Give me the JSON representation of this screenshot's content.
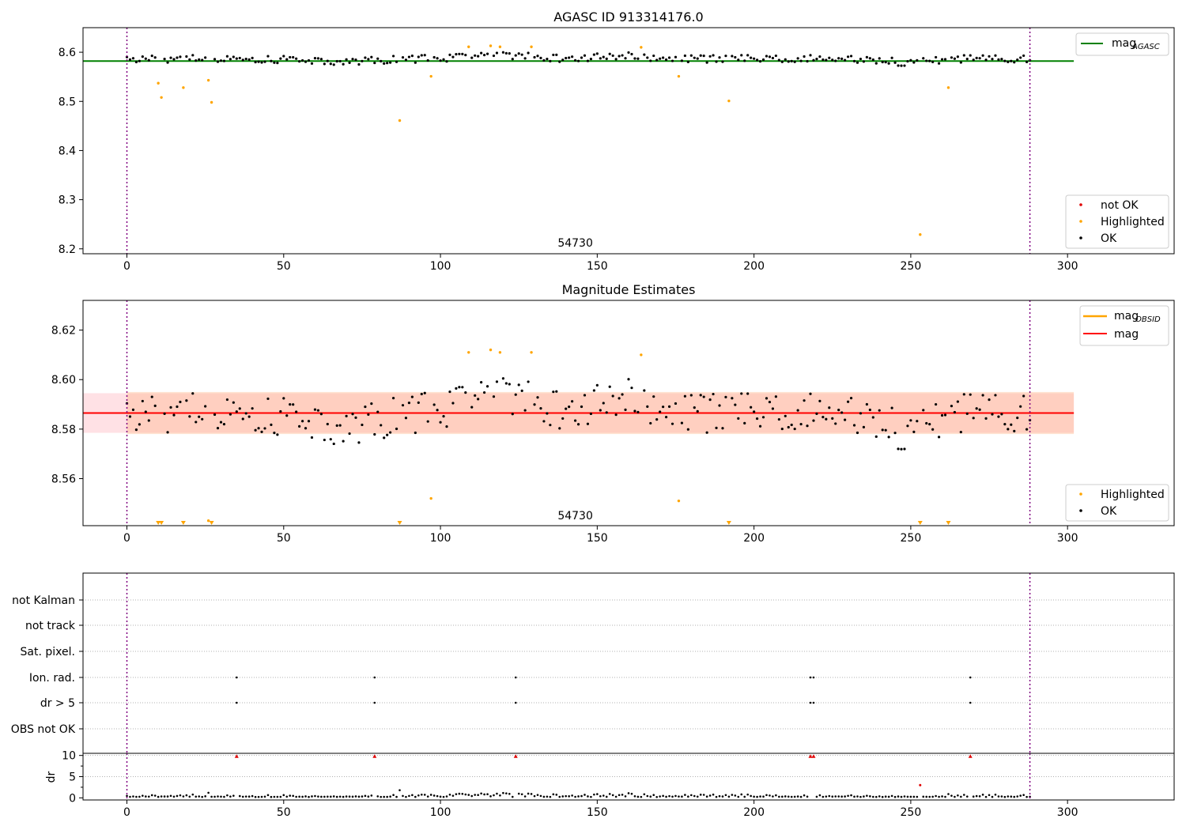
{
  "chart_data": [
    {
      "id": "agasc",
      "type": "scatter",
      "title": "AGASC ID 913314176.0",
      "annotation": "54730",
      "xlim": [
        -14,
        334
      ],
      "ylim": [
        8.19,
        8.65
      ],
      "xticks": [
        0,
        50,
        100,
        150,
        200,
        250,
        300
      ],
      "yticks": [
        8.2,
        8.3,
        8.4,
        8.5,
        8.6
      ],
      "ytick_format": 1,
      "vlines": [
        0,
        288
      ],
      "hline": {
        "value": 8.582,
        "x_range": [
          -14,
          302
        ],
        "color": "#008000"
      },
      "legend_top": [
        {
          "label": "mag",
          "subscript": "AGASC",
          "color": "#008000"
        }
      ],
      "legend_bottom": [
        {
          "label": "not OK",
          "color": "#e00000"
        },
        {
          "label": "Highlighted",
          "color": "#ffa500"
        },
        {
          "label": "OK",
          "color": "#000000"
        }
      ],
      "highlighted": [
        [
          10,
          8.537
        ],
        [
          11,
          8.508
        ],
        [
          18,
          8.528
        ],
        [
          26,
          8.543
        ],
        [
          27,
          8.498
        ],
        [
          87,
          8.461
        ],
        [
          97,
          8.551
        ],
        [
          109,
          8.611
        ],
        [
          116,
          8.613
        ],
        [
          119,
          8.611
        ],
        [
          129,
          8.611
        ],
        [
          164,
          8.61
        ],
        [
          176,
          8.551
        ],
        [
          192,
          8.501
        ],
        [
          253,
          8.229
        ],
        [
          262,
          8.528
        ]
      ]
    },
    {
      "id": "estimates",
      "type": "scatter",
      "title": "Magnitude Estimates",
      "annotation": "54730",
      "xlim": [
        -14,
        334
      ],
      "ylim": [
        8.541,
        8.632
      ],
      "xticks": [
        0,
        50,
        100,
        150,
        200,
        250,
        300
      ],
      "yticks": [
        8.56,
        8.58,
        8.6,
        8.62
      ],
      "ytick_format": 2,
      "vlines": [
        0,
        288
      ],
      "mag": 8.5865,
      "band_outer": [
        8.5785,
        8.5945
      ],
      "band_inner": [
        8.578,
        8.595
      ],
      "legend_top": [
        {
          "label": "mag",
          "subscript": "OBSID",
          "color": "#ffa500"
        },
        {
          "label": "mag",
          "subscript": "",
          "color": "#ff0000"
        }
      ],
      "legend_bottom": [
        {
          "label": "Highlighted",
          "color": "#ffa500"
        },
        {
          "label": "OK",
          "color": "#000000"
        }
      ],
      "highlighted": [
        [
          97,
          8.552
        ],
        [
          109,
          8.611
        ],
        [
          116,
          8.612
        ],
        [
          119,
          8.611
        ],
        [
          129,
          8.611
        ],
        [
          164,
          8.61
        ],
        [
          176,
          8.551
        ],
        [
          26,
          8.543
        ]
      ],
      "below_range": [
        10,
        11,
        18,
        27,
        87,
        192,
        253,
        262
      ]
    },
    {
      "id": "flags",
      "type": "scatter",
      "categories": [
        "not Kalman",
        "not track",
        "Sat. pixel.",
        "Ion. rad.",
        "dr > 5",
        "OBS not OK"
      ],
      "xlim": [
        -14,
        334
      ],
      "xticks": [
        0,
        50,
        100,
        150,
        200,
        250,
        300
      ],
      "vlines": [
        0,
        288
      ],
      "flags": {
        "Ion. rad.": [
          35,
          79,
          124,
          218,
          219,
          269
        ],
        "dr > 5": [
          35,
          79,
          124,
          218,
          219,
          269
        ]
      }
    },
    {
      "id": "dr",
      "type": "scatter",
      "ylabel": "dr",
      "xlim": [
        -14,
        334
      ],
      "ylim": [
        -0.5,
        10.5
      ],
      "xticks": [
        0,
        50,
        100,
        150,
        200,
        250,
        300
      ],
      "yticks": [
        0,
        5,
        10
      ],
      "vlines": [
        0,
        288
      ],
      "capped": [
        35,
        79,
        124,
        218,
        219,
        269
      ],
      "highlighted": [
        [
          253,
          3.0
        ]
      ],
      "outliers": [
        [
          26,
          1.2
        ],
        [
          87,
          1.8
        ],
        [
          262,
          0.9
        ]
      ]
    }
  ]
}
